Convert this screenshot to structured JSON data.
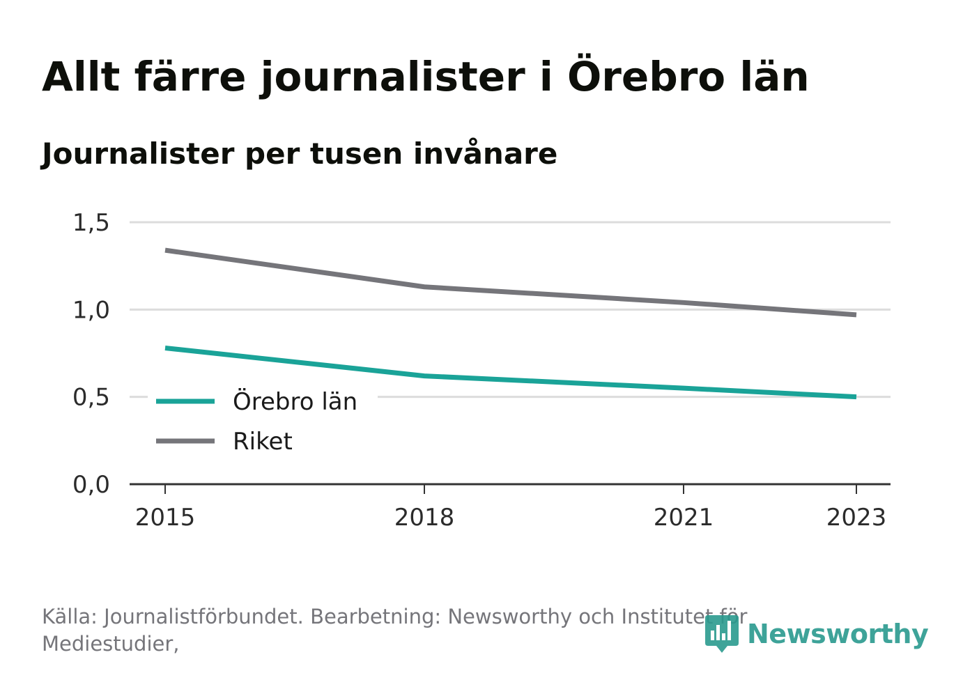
{
  "title": "Allt färre journalister i Örebro län",
  "subtitle": "Journalister per tusen invånare",
  "source": "Källa: Journalistförbundet. Bearbetning: Newsworthy och Institutet för Mediestudier,",
  "logo": {
    "text": "Newsworthy",
    "icon": "newsworthy-bars-icon",
    "color": "#2a9a8e"
  },
  "chart_data": {
    "type": "line",
    "x": [
      2015,
      2018,
      2021,
      2023
    ],
    "xticks": [
      "2015",
      "2018",
      "2021",
      "2023"
    ],
    "xlim": [
      2015,
      2023
    ],
    "ylim": [
      0,
      1.5
    ],
    "yticks": [
      "0,0",
      "0,5",
      "1,0",
      "1,5"
    ],
    "ytick_values": [
      0,
      0.5,
      1.0,
      1.5
    ],
    "grid": true,
    "legend_position": "bottom-left",
    "series": [
      {
        "name": "Örebro län",
        "color": "#1aa398",
        "values": [
          0.78,
          0.62,
          0.55,
          0.5
        ]
      },
      {
        "name": "Riket",
        "color": "#75757a",
        "values": [
          1.34,
          1.13,
          1.04,
          0.97
        ]
      }
    ]
  }
}
